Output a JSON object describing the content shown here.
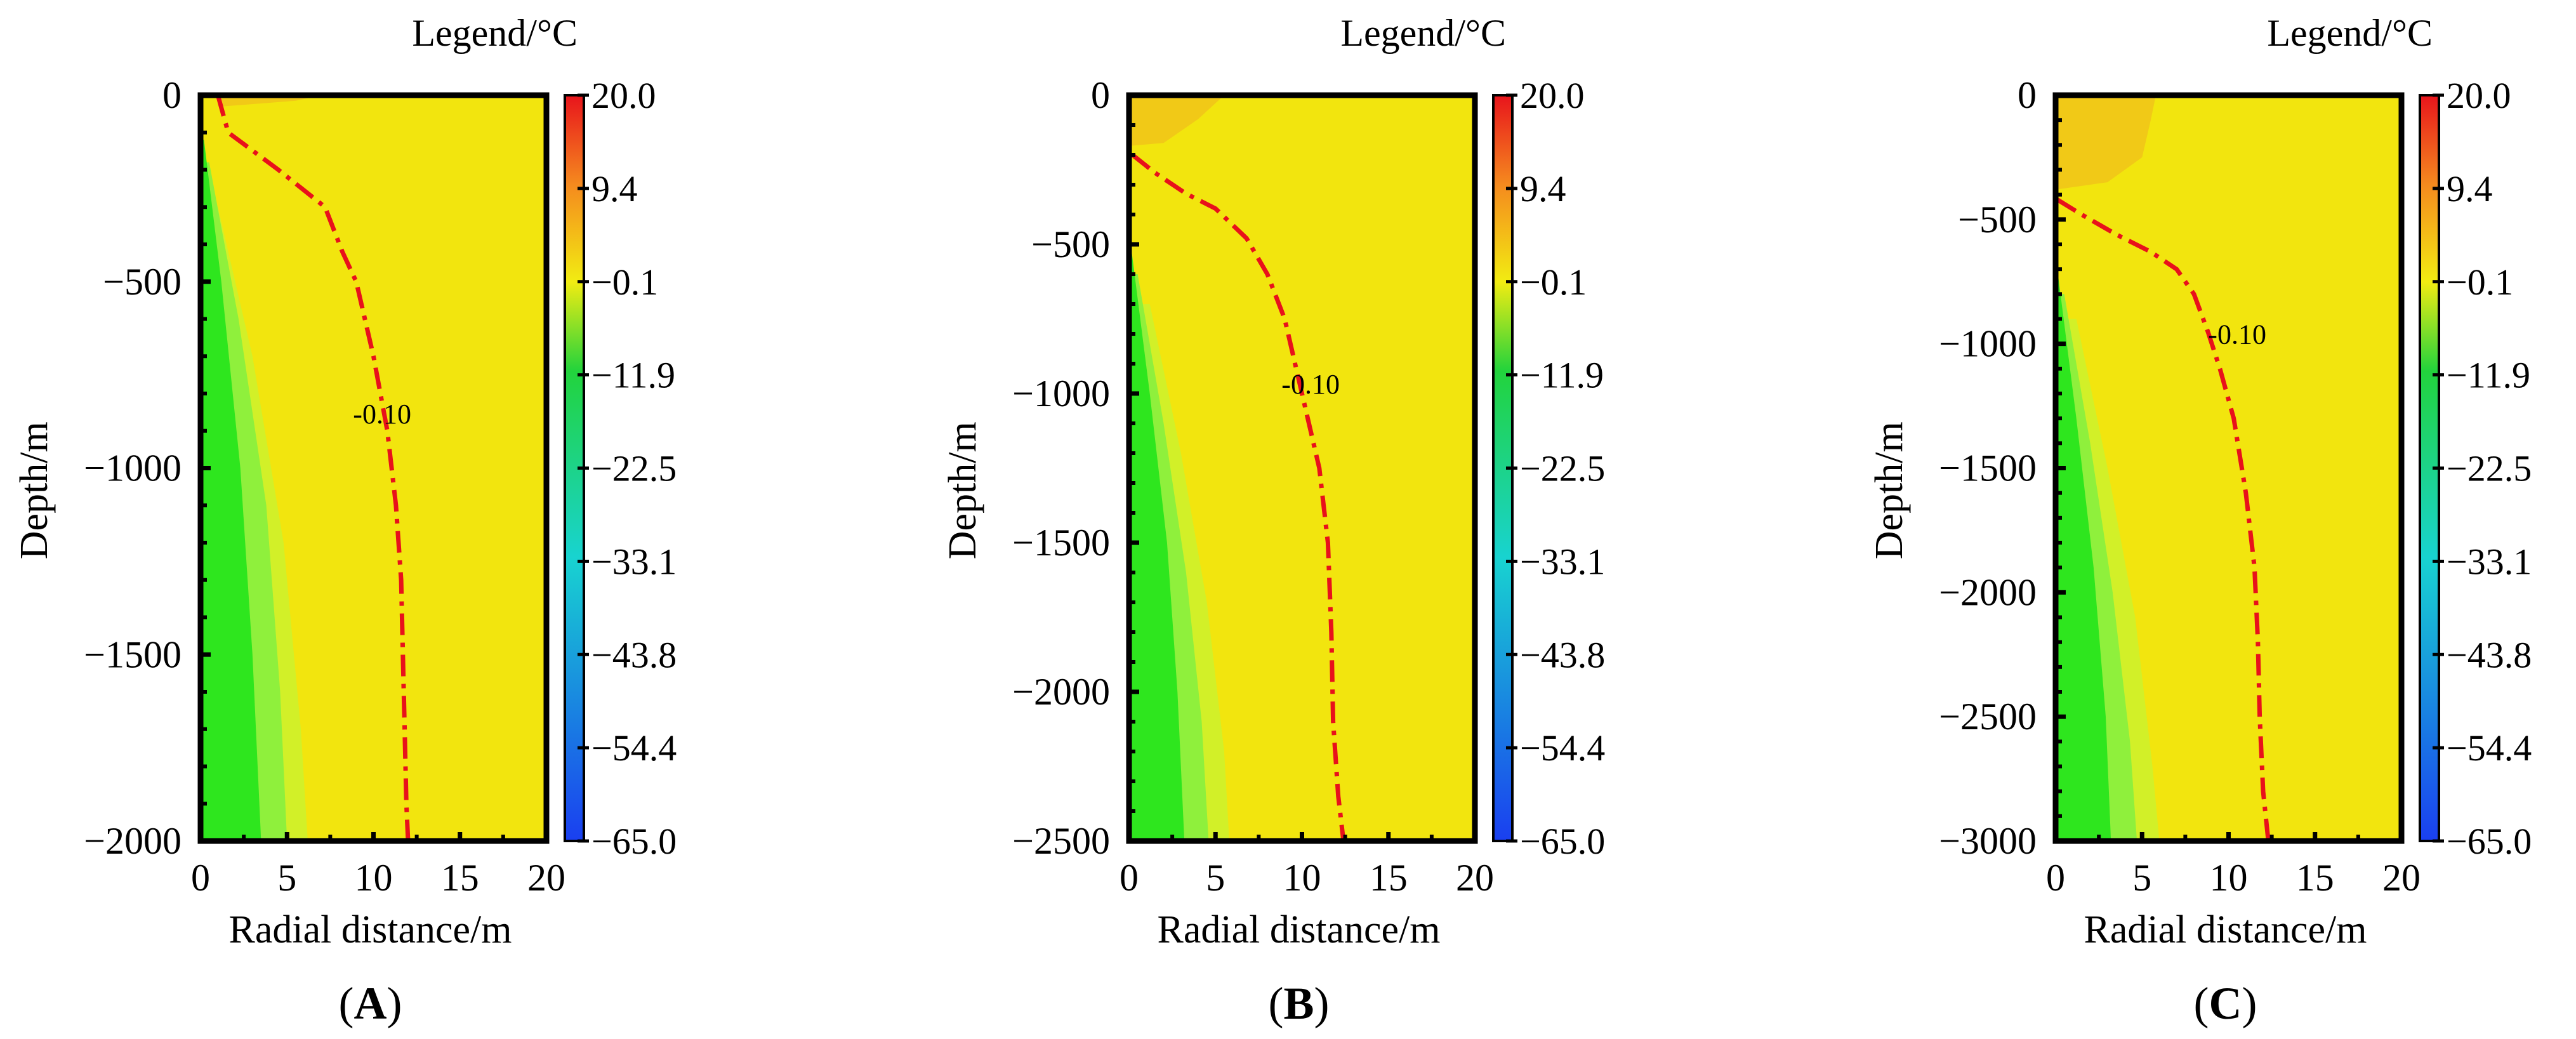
{
  "chart_data": [
    {
      "type": "heatmap",
      "panel_label": "A",
      "legend_title": "Legend/°C",
      "legend_ticks": [
        "20.0",
        "9.4",
        "−0.1",
        "−11.9",
        "−22.5",
        "−33.1",
        "−43.8",
        "−54.4",
        "−65.0"
      ],
      "legend_values": [
        20.0,
        9.4,
        -0.1,
        -11.9,
        -22.5,
        -33.1,
        -43.8,
        -54.4,
        -65.0
      ],
      "xlabel": "Radial distance/m",
      "ylabel": "Depth/m",
      "xlim": [
        0,
        20
      ],
      "ylim": [
        -2000,
        0
      ],
      "x_ticks": [
        0,
        5,
        10,
        15,
        20
      ],
      "y_ticks": [
        0,
        -500,
        -1000,
        -1500,
        -2000
      ],
      "y_tick_labels": [
        "0",
        "−500",
        "−1000",
        "−1500",
        "−2000"
      ],
      "contour_label": "-0.10",
      "contour_label_pos": [
        10.5,
        -880
      ],
      "contour": [
        [
          1.0,
          0
        ],
        [
          1.6,
          -100
        ],
        [
          4.5,
          -200
        ],
        [
          7.2,
          -300
        ],
        [
          8.2,
          -420
        ],
        [
          9.0,
          -500
        ],
        [
          10.0,
          -700
        ],
        [
          10.8,
          -900
        ],
        [
          11.3,
          -1100
        ],
        [
          11.6,
          -1300
        ],
        [
          11.7,
          -1500
        ],
        [
          11.8,
          -1700
        ],
        [
          11.9,
          -1900
        ],
        [
          12.0,
          -2000
        ]
      ],
      "surface_zone": [
        [
          1.0,
          0
        ],
        [
          1.3,
          -30
        ],
        [
          5.5,
          -15
        ],
        [
          7.0,
          0
        ]
      ],
      "green_front": [
        [
          0.2,
          -120
        ],
        [
          1.2,
          -500
        ],
        [
          2.3,
          -1000
        ],
        [
          3.0,
          -1500
        ],
        [
          3.5,
          -2000
        ]
      ],
      "lightgreen_front": [
        [
          0.5,
          -180
        ],
        [
          2.2,
          -600
        ],
        [
          3.8,
          -1100
        ],
        [
          4.6,
          -1600
        ],
        [
          5.0,
          -2000
        ]
      ],
      "yellowgreen_front": [
        [
          1.0,
          -300
        ],
        [
          3.0,
          -700
        ],
        [
          4.8,
          -1200
        ],
        [
          5.8,
          -1700
        ],
        [
          6.2,
          -2000
        ]
      ]
    },
    {
      "type": "heatmap",
      "panel_label": "B",
      "legend_title": "Legend/°C",
      "legend_ticks": [
        "20.0",
        "9.4",
        "−0.1",
        "−11.9",
        "−22.5",
        "−33.1",
        "−43.8",
        "−54.4",
        "−65.0"
      ],
      "legend_values": [
        20.0,
        9.4,
        -0.1,
        -11.9,
        -22.5,
        -33.1,
        -43.8,
        -54.4,
        -65.0
      ],
      "xlabel": "Radial distance/m",
      "ylabel": "Depth/m",
      "xlim": [
        0,
        20
      ],
      "ylim": [
        -2500,
        0
      ],
      "x_ticks": [
        0,
        5,
        10,
        15,
        20
      ],
      "y_ticks": [
        0,
        -500,
        -1000,
        -1500,
        -2000,
        -2500
      ],
      "y_tick_labels": [
        "0",
        "−500",
        "−1000",
        "−1500",
        "−2000",
        "−2500"
      ],
      "contour_label": "-0.10",
      "contour_label_pos": [
        10.5,
        -1000
      ],
      "contour": [
        [
          0.2,
          -200
        ],
        [
          1.5,
          -260
        ],
        [
          3.3,
          -330
        ],
        [
          5.0,
          -380
        ],
        [
          6.8,
          -480
        ],
        [
          8.0,
          -600
        ],
        [
          9.0,
          -750
        ],
        [
          10.0,
          -1000
        ],
        [
          11.0,
          -1250
        ],
        [
          11.5,
          -1500
        ],
        [
          11.7,
          -1800
        ],
        [
          11.8,
          -2100
        ],
        [
          12.1,
          -2350
        ],
        [
          12.4,
          -2500
        ]
      ],
      "surface_zone": [
        [
          0,
          -170
        ],
        [
          2.0,
          -160
        ],
        [
          4.0,
          -80
        ],
        [
          5.5,
          0
        ]
      ],
      "green_front": [
        [
          0.1,
          -500
        ],
        [
          1.2,
          -1000
        ],
        [
          2.2,
          -1500
        ],
        [
          2.8,
          -2000
        ],
        [
          3.2,
          -2500
        ]
      ],
      "lightgreen_front": [
        [
          0.5,
          -600
        ],
        [
          2.0,
          -1100
        ],
        [
          3.3,
          -1600
        ],
        [
          4.2,
          -2100
        ],
        [
          4.6,
          -2500
        ]
      ],
      "yellowgreen_front": [
        [
          1.2,
          -700
        ],
        [
          3.0,
          -1200
        ],
        [
          4.5,
          -1700
        ],
        [
          5.5,
          -2200
        ],
        [
          5.8,
          -2500
        ]
      ]
    },
    {
      "type": "heatmap",
      "panel_label": "C",
      "legend_title": "Legend/°C",
      "legend_ticks": [
        "20.0",
        "9.4",
        "−0.1",
        "−11.9",
        "−22.5",
        "−33.1",
        "−43.8",
        "−54.4",
        "−65.0"
      ],
      "legend_values": [
        20.0,
        9.4,
        -0.1,
        -11.9,
        -22.5,
        -33.1,
        -43.8,
        -54.4,
        -65.0
      ],
      "xlabel": "Radial distance/m",
      "ylabel": "Depth/m",
      "xlim": [
        0,
        20
      ],
      "ylim": [
        -3000,
        0
      ],
      "x_ticks": [
        0,
        5,
        10,
        15,
        20
      ],
      "y_ticks": [
        0,
        -500,
        -1000,
        -1500,
        -2000,
        -2500,
        -3000
      ],
      "y_tick_labels": [
        "0",
        "−500",
        "−1000",
        "−1500",
        "−2000",
        "−2500",
        "−3000"
      ],
      "contour_label": "-0.10",
      "contour_label_pos": [
        10.5,
        -1000
      ],
      "contour": [
        [
          0.1,
          -420
        ],
        [
          1.5,
          -480
        ],
        [
          3.5,
          -560
        ],
        [
          5.5,
          -630
        ],
        [
          7.0,
          -700
        ],
        [
          8.0,
          -800
        ],
        [
          8.8,
          -950
        ],
        [
          9.5,
          -1100
        ],
        [
          10.3,
          -1300
        ],
        [
          11.0,
          -1600
        ],
        [
          11.5,
          -1900
        ],
        [
          11.7,
          -2200
        ],
        [
          11.8,
          -2500
        ],
        [
          12.0,
          -2800
        ],
        [
          12.3,
          -3000
        ]
      ],
      "surface_zone": [
        [
          0,
          -380
        ],
        [
          3.0,
          -350
        ],
        [
          5.0,
          -250
        ],
        [
          5.5,
          -100
        ],
        [
          5.8,
          0
        ]
      ],
      "green_front": [
        [
          0.1,
          -700
        ],
        [
          1.2,
          -1300
        ],
        [
          2.2,
          -1900
        ],
        [
          2.9,
          -2500
        ],
        [
          3.2,
          -3000
        ]
      ],
      "lightgreen_front": [
        [
          0.5,
          -800
        ],
        [
          2.0,
          -1400
        ],
        [
          3.3,
          -2000
        ],
        [
          4.3,
          -2600
        ],
        [
          4.7,
          -3000
        ]
      ],
      "yellowgreen_front": [
        [
          1.2,
          -900
        ],
        [
          3.0,
          -1500
        ],
        [
          4.6,
          -2100
        ],
        [
          5.6,
          -2700
        ],
        [
          6.0,
          -3000
        ]
      ]
    }
  ],
  "colors": {
    "background_yellow": "#f2e50e",
    "surface_orange": "#f0c21a",
    "green": "#2ee61e",
    "light_green": "#8ff03c",
    "yellow_green": "#d2f028",
    "contour": "#e8111b",
    "colorbar": [
      "#e8141c",
      "#f58a1e",
      "#f2ec12",
      "#22d33c",
      "#18d3d0",
      "#1a3ff0"
    ]
  }
}
